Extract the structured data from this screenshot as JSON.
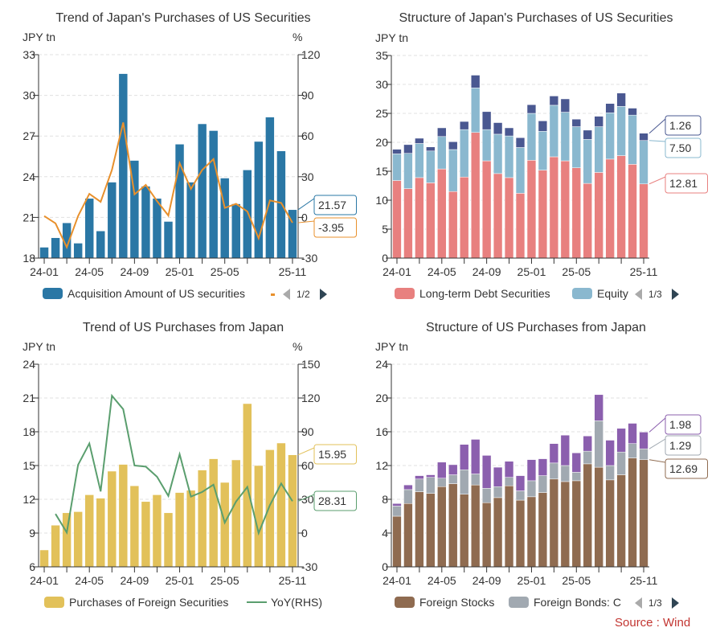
{
  "source": "Source : Wind",
  "chart_data": [
    {
      "type": "bar+line",
      "title": "Trend of Japan's Purchases of US Securities",
      "ylabel": "JPY tn",
      "y2label": "%",
      "ylim": [
        18,
        33
      ],
      "yticks": [
        "18",
        "21",
        "24",
        "27",
        "30",
        "33"
      ],
      "y2lim": [
        -30,
        120
      ],
      "y2ticks": [
        "-30",
        "0",
        "30",
        "60",
        "90",
        "120"
      ],
      "categories": [
        "24-01",
        "24-02",
        "24-03",
        "24-04",
        "24-05",
        "24-06",
        "24-07",
        "24-08",
        "24-09",
        "24-10",
        "24-11",
        "24-12",
        "25-01",
        "25-02",
        "25-03",
        "25-04",
        "25-05",
        "25-06",
        "25-07",
        "25-08",
        "25-09",
        "25-10",
        "25-11"
      ],
      "xtick_labels": [
        "24-01",
        "24-05",
        "24-09",
        "25-01",
        "25-05",
        "25-11"
      ],
      "series": [
        {
          "name": "Acquisition Amount of US securities",
          "kind": "bar",
          "axis": "left",
          "color": "#2a77a5",
          "values": [
            18.8,
            19.5,
            20.6,
            19.1,
            22.4,
            20.0,
            23.6,
            31.6,
            25.2,
            23.3,
            22.4,
            20.7,
            26.4,
            23.6,
            27.9,
            27.4,
            23.9,
            22.0,
            24.5,
            26.6,
            28.4,
            25.9,
            21.57
          ]
        },
        {
          "kind": "line",
          "axis": "right",
          "color": "#e8902c",
          "values": [
            1,
            -4.4,
            -22,
            1,
            17.4,
            11.5,
            35,
            70,
            17,
            24,
            12,
            1.4,
            40,
            21,
            35,
            43,
            7,
            10,
            4.4,
            -15.4,
            12.5,
            10.7,
            -3.95
          ]
        }
      ],
      "callouts": [
        {
          "text": "21.57",
          "color": "#2a77a5"
        },
        {
          "text": "-3.95",
          "color": "#e8902c"
        }
      ],
      "legend": {
        "items": [
          "Acquisition Amount of US securities"
        ],
        "page": "1/2"
      },
      "grid": true,
      "legend_position": "bottom"
    },
    {
      "type": "stacked-bar",
      "title": "Structure of Japan's Purchases of US Securities",
      "ylabel": "JPY tn",
      "ylim": [
        0,
        35
      ],
      "yticks": [
        "0",
        "5",
        "10",
        "15",
        "20",
        "25",
        "30",
        "35"
      ],
      "categories": [
        "24-01",
        "24-02",
        "24-03",
        "24-04",
        "24-05",
        "24-06",
        "24-07",
        "24-08",
        "24-09",
        "24-10",
        "24-11",
        "24-12",
        "25-01",
        "25-02",
        "25-03",
        "25-04",
        "25-05",
        "25-06",
        "25-07",
        "25-08",
        "25-09",
        "25-10",
        "25-11"
      ],
      "xtick_labels": [
        "24-01",
        "24-05",
        "24-09",
        "25-01",
        "25-05",
        "25-11"
      ],
      "series": [
        {
          "name": "Long-term Debt Securities",
          "kind": "bar",
          "color": "#e8807f",
          "values": [
            13.4,
            12.0,
            13.9,
            13.0,
            15.4,
            11.5,
            14.0,
            21.7,
            16.8,
            14.6,
            13.9,
            11.2,
            16.9,
            15.2,
            17.5,
            16.8,
            15.6,
            12.9,
            14.8,
            17.1,
            17.7,
            16.2,
            12.81
          ]
        },
        {
          "name": "Equity",
          "kind": "bar",
          "color": "#8ab8cf",
          "values": [
            4.6,
            6.1,
            5.9,
            5.5,
            5.6,
            7.25,
            8.2,
            7.7,
            5.4,
            6.8,
            7.2,
            7.9,
            8.1,
            6.7,
            8.9,
            8.4,
            7.1,
            7.6,
            7.9,
            8.0,
            8.5,
            8.5,
            7.5
          ]
        },
        {
          "kind": "bar",
          "color": "#4a5891",
          "values": [
            0.8,
            1.5,
            0.9,
            0.7,
            1.5,
            1.35,
            1.4,
            2.2,
            3.1,
            2.0,
            1.4,
            1.7,
            1.5,
            1.8,
            1.6,
            2.3,
            1.3,
            1.6,
            1.8,
            1.6,
            2.3,
            1.2,
            1.26
          ]
        }
      ],
      "callouts": [
        {
          "text": "1.26",
          "color": "#4a5891"
        },
        {
          "text": "7.50",
          "color": "#8ab8cf"
        },
        {
          "text": "12.81",
          "color": "#e8807f"
        }
      ],
      "legend": {
        "items": [
          "Long-term Debt Securities",
          "Equity"
        ],
        "page": "1/3"
      },
      "grid": true,
      "legend_position": "bottom"
    },
    {
      "type": "bar+line",
      "title": "Trend of US Purchases from Japan",
      "ylabel": "JPY tn",
      "y2label": "%",
      "ylim": [
        6,
        24
      ],
      "yticks": [
        "6",
        "9",
        "12",
        "15",
        "18",
        "21",
        "24"
      ],
      "y2lim": [
        -30,
        150
      ],
      "y2ticks": [
        "-30",
        "0",
        "30",
        "60",
        "90",
        "120",
        "150"
      ],
      "categories": [
        "24-01",
        "24-02",
        "24-03",
        "24-04",
        "24-05",
        "24-06",
        "24-07",
        "24-08",
        "24-09",
        "24-10",
        "24-11",
        "24-12",
        "25-01",
        "25-02",
        "25-03",
        "25-04",
        "25-05",
        "25-06",
        "25-07",
        "25-08",
        "25-09",
        "25-10",
        "25-11"
      ],
      "xtick_labels": [
        "24-01",
        "24-05",
        "24-09",
        "25-01",
        "25-05",
        "25-11"
      ],
      "series": [
        {
          "name": "Purchases of Foreign Securities",
          "kind": "bar",
          "axis": "left",
          "color": "#e2c15a",
          "values": [
            7.5,
            9.7,
            10.8,
            10.9,
            12.4,
            12.1,
            14.5,
            15.1,
            13.2,
            11.8,
            12.4,
            10.8,
            12.6,
            12.8,
            14.6,
            15.6,
            13.5,
            15.5,
            20.5,
            15.0,
            16.4,
            17.0,
            15.95
          ]
        },
        {
          "name": "YoY(RHS)",
          "kind": "line",
          "axis": "right",
          "color": "#5a9e6e",
          "values": [
            null,
            17,
            0.5,
            60.6,
            79.6,
            37,
            122,
            110,
            60,
            59,
            50,
            33,
            70,
            32.4,
            36.5,
            43,
            9.3,
            28,
            41,
            0,
            24.8,
            44,
            28.31
          ]
        }
      ],
      "callouts": [
        {
          "text": "15.95",
          "color": "#e2c15a"
        },
        {
          "text": "28.31",
          "color": "#5a9e6e"
        }
      ],
      "legend": {
        "items": [
          "Purchases of Foreign Securities",
          "YoY(RHS)"
        ]
      },
      "grid": true,
      "legend_position": "bottom"
    },
    {
      "type": "stacked-bar",
      "title": "Structure of US Purchases from Japan",
      "ylabel": "JPY tn",
      "ylim": [
        0,
        24
      ],
      "yticks": [
        "0",
        "4",
        "8",
        "12",
        "16",
        "20",
        "24"
      ],
      "categories": [
        "24-01",
        "24-02",
        "24-03",
        "24-04",
        "24-05",
        "24-06",
        "24-07",
        "24-08",
        "24-09",
        "24-10",
        "24-11",
        "24-12",
        "25-01",
        "25-02",
        "25-03",
        "25-04",
        "25-05",
        "25-06",
        "25-07",
        "25-08",
        "25-09",
        "25-10",
        "25-11"
      ],
      "xtick_labels": [
        "24-01",
        "24-05",
        "24-09",
        "25-01",
        "25-05",
        "25-11"
      ],
      "series": [
        {
          "name": "Foreign Stocks",
          "kind": "bar",
          "color": "#8f6b50",
          "values": [
            6.0,
            7.5,
            8.9,
            8.7,
            9.5,
            9.85,
            8.6,
            9.7,
            7.6,
            8.2,
            9.6,
            7.9,
            8.3,
            8.8,
            10.4,
            10.1,
            10.2,
            12.2,
            11.8,
            10.3,
            10.9,
            12.9,
            12.69
          ]
        },
        {
          "name": "Foreign Bonds: C",
          "kind": "bar",
          "color": "#a1a9b1",
          "values": [
            1.2,
            1.65,
            1.5,
            1.9,
            1.0,
            1.05,
            2.9,
            1.3,
            1.7,
            1.3,
            1.0,
            1.1,
            1.9,
            2.0,
            1.9,
            1.9,
            1.0,
            1.5,
            5.5,
            1.7,
            2.7,
            1.7,
            1.29
          ]
        },
        {
          "kind": "bar",
          "color": "#8b5fae",
          "values": [
            0.3,
            0.55,
            0.4,
            0.3,
            1.9,
            1.2,
            3.0,
            4.1,
            3.9,
            2.3,
            1.9,
            1.8,
            2.5,
            2.0,
            2.3,
            3.6,
            2.3,
            1.8,
            3.1,
            3.0,
            2.8,
            2.4,
            1.98
          ]
        }
      ],
      "callouts": [
        {
          "text": "1.98",
          "color": "#8b5fae"
        },
        {
          "text": "1.29",
          "color": "#a1a9b1"
        },
        {
          "text": "12.69",
          "color": "#8f6b50"
        }
      ],
      "legend": {
        "items": [
          "Foreign Stocks",
          "Foreign Bonds: C"
        ],
        "page": "1/3"
      },
      "grid": true,
      "legend_position": "bottom"
    }
  ]
}
